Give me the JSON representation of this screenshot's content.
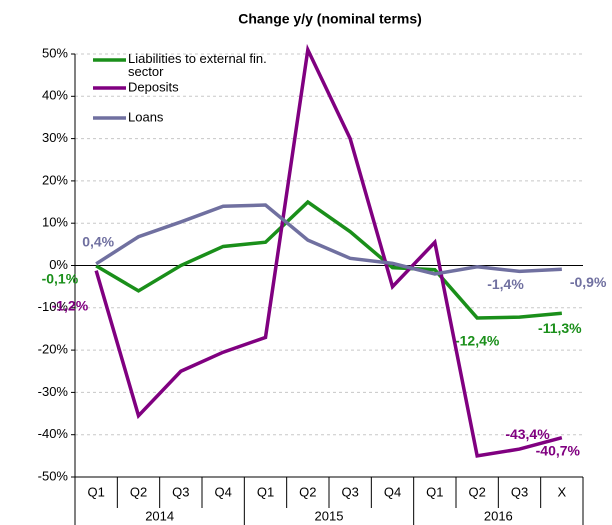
{
  "chart_data": {
    "type": "line",
    "title": "Change y/y (nominal terms)",
    "categories": [
      "Q1",
      "Q2",
      "Q3",
      "Q4",
      "Q1",
      "Q2",
      "Q3",
      "Q4",
      "Q1",
      "Q2",
      "Q3",
      "X"
    ],
    "year_groups": [
      "2014",
      "2015",
      "2016"
    ],
    "series": [
      {
        "name": "Liabilities to external fin. sector",
        "color": "#1a8f1a",
        "values": [
          -0.1,
          -6,
          0,
          4.5,
          5.5,
          15,
          8,
          -0.5,
          -1,
          -12.4,
          -12.2,
          -11.3
        ],
        "value_labels": [
          "-0,1%",
          null,
          null,
          null,
          null,
          null,
          null,
          null,
          null,
          "-12,4%",
          null,
          "-11,3%"
        ]
      },
      {
        "name": "Deposits",
        "color": "#800080",
        "values": [
          -1.2,
          -35.5,
          -25,
          -20.5,
          -17,
          51,
          30,
          -5,
          5.5,
          -45,
          -43.4,
          -40.7
        ],
        "value_labels": [
          "-1,2%",
          null,
          null,
          null,
          null,
          null,
          null,
          null,
          null,
          null,
          "-43,4%",
          "-40,7%"
        ]
      },
      {
        "name": "Loans",
        "color": "#7070a0",
        "values": [
          0.4,
          6.8,
          10.3,
          14,
          14.3,
          6,
          1.7,
          0.5,
          -2,
          -0.3,
          -1.4,
          -0.9
        ],
        "value_labels": [
          "0,4%",
          null,
          null,
          null,
          null,
          null,
          null,
          null,
          null,
          null,
          "-1,4%",
          "-0,9%"
        ]
      }
    ],
    "ylim": [
      -50,
      50
    ],
    "yticks": [
      {
        "value": -50,
        "label": "-50%"
      },
      {
        "value": -40,
        "label": "-40%"
      },
      {
        "value": -30,
        "label": "-30%"
      },
      {
        "value": -20,
        "label": "-20%"
      },
      {
        "value": -10,
        "label": "-10%"
      },
      {
        "value": 0,
        "label": "0%"
      },
      {
        "value": 10,
        "label": "10%"
      },
      {
        "value": 20,
        "label": "20%"
      },
      {
        "value": 30,
        "label": "30%"
      },
      {
        "value": 40,
        "label": "40%"
      },
      {
        "value": 50,
        "label": "50%"
      }
    ],
    "grid": true,
    "legend_position": "upper left"
  }
}
